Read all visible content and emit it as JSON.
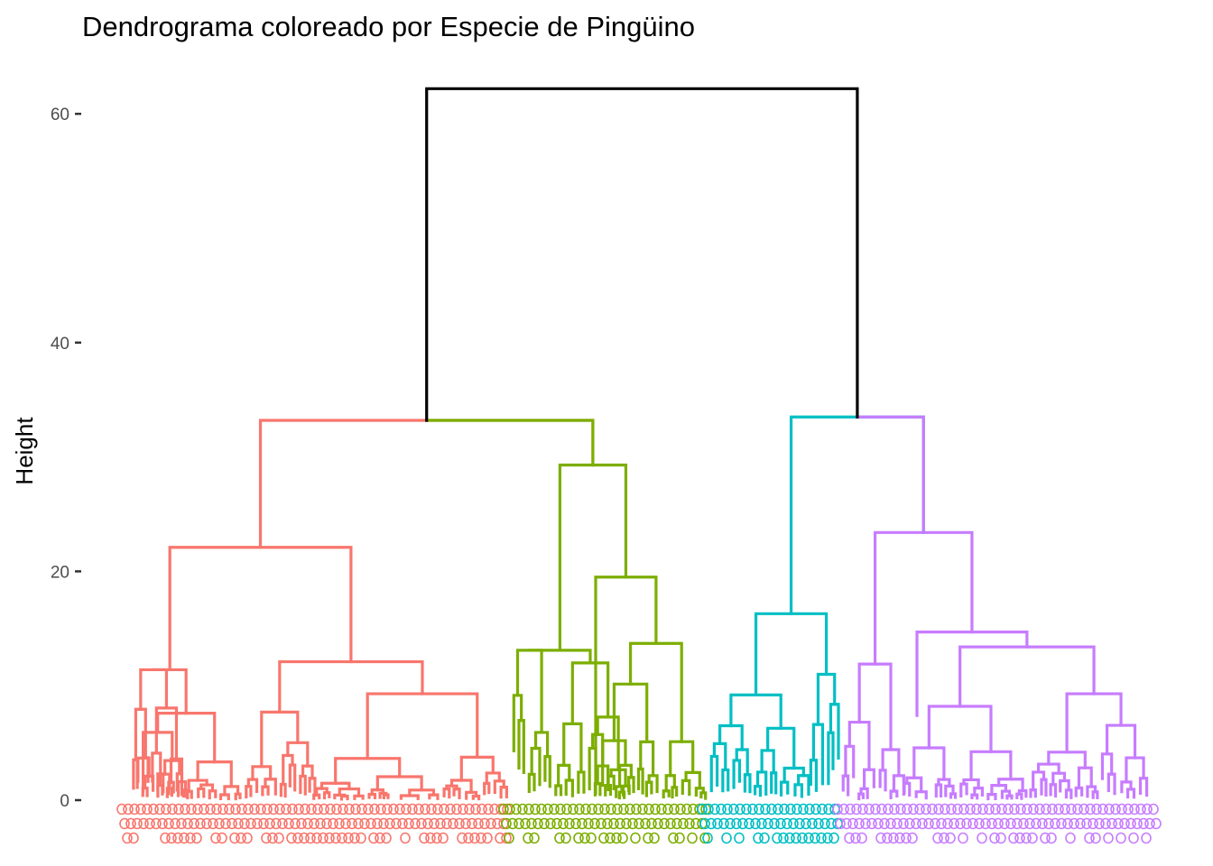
{
  "chart_data": {
    "type": "dendrogram",
    "title": "Dendrograma coloreado por Especie de Pingüino",
    "ylabel": "Height",
    "xlabel": "",
    "ylim": [
      0,
      62
    ],
    "yticks": [
      0,
      20,
      40,
      60
    ],
    "grid": false,
    "colors": {
      "root": "#000000",
      "cluster1": "#F8766D",
      "cluster2": "#7CAE00",
      "cluster3": "#00BFC4",
      "cluster4": "#C77CFF"
    },
    "merges": [
      {
        "name": "root",
        "height": 62.2,
        "children": [
          "left-group",
          "right-group"
        ]
      },
      {
        "name": "left-group",
        "height": 33.2,
        "children": [
          "cluster1",
          "cluster2"
        ]
      },
      {
        "name": "right-group",
        "height": 33.5,
        "children": [
          "cluster3",
          "cluster4"
        ]
      },
      {
        "name": "cluster1",
        "height": 22.1
      },
      {
        "name": "cluster2",
        "height": 29.3
      },
      {
        "name": "cluster3",
        "height": 16.3
      },
      {
        "name": "cluster4",
        "height": 23.4
      }
    ]
  }
}
